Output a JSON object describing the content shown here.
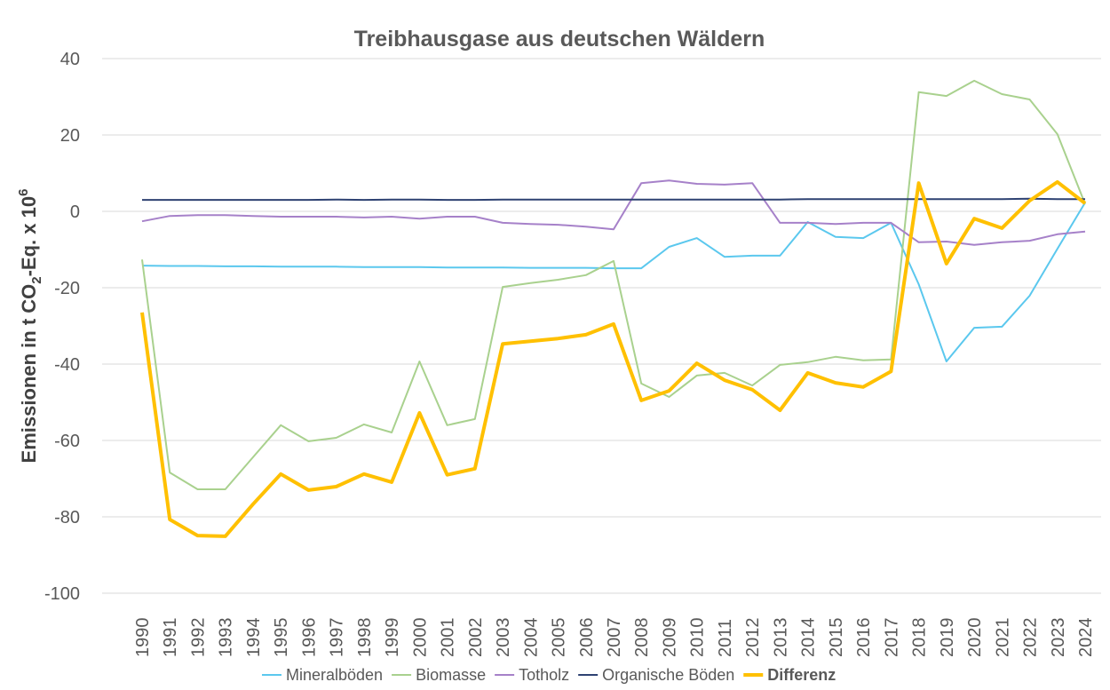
{
  "chart_data": {
    "type": "line",
    "title": "Treibhausgase aus deutschen Wäldern",
    "ylabel_main": "Emissionen in t CO",
    "ylabel_sub": "2",
    "ylabel_mid": "-Eq. x 10",
    "ylabel_sup": "6",
    "ylim": [
      -100,
      40
    ],
    "yticks": [
      40,
      20,
      0,
      -20,
      -40,
      -60,
      -80,
      -100
    ],
    "grid": true,
    "legend_position": "bottom",
    "x": [
      1990,
      1991,
      1992,
      1993,
      1994,
      1995,
      1996,
      1997,
      1998,
      1999,
      2000,
      2001,
      2002,
      2003,
      2004,
      2005,
      2006,
      2007,
      2008,
      2009,
      2010,
      2011,
      2012,
      2013,
      2014,
      2015,
      2016,
      2017,
      2018,
      2019,
      2020,
      2021,
      2022,
      2023,
      2024
    ],
    "series": [
      {
        "name": "Mineralböden",
        "color": "#5BC8EE",
        "bold": false,
        "values": [
          -14.2,
          -14.3,
          -14.3,
          -14.4,
          -14.4,
          -14.5,
          -14.5,
          -14.5,
          -14.6,
          -14.6,
          -14.6,
          -14.7,
          -14.7,
          -14.7,
          -14.8,
          -14.8,
          -14.8,
          -14.9,
          -14.9,
          -9.3,
          -7.0,
          -11.9,
          -11.6,
          -11.6,
          -2.8,
          -6.7,
          -7.0,
          -3.0,
          -19.1,
          -39.3,
          -30.5,
          -30.2,
          -22.1,
          -9.8,
          2.3
        ]
      },
      {
        "name": "Biomasse",
        "color": "#A9D18E",
        "bold": false,
        "values": [
          -12.6,
          -68.4,
          -72.8,
          -72.8,
          -64.4,
          -56.0,
          -60.2,
          -59.3,
          -55.8,
          -57.9,
          -39.3,
          -56.0,
          -54.4,
          -19.8,
          -18.8,
          -17.9,
          -16.7,
          -13.0,
          -45.1,
          -48.6,
          -43.0,
          -42.3,
          -45.6,
          -40.2,
          -39.5,
          -38.1,
          -39.0,
          -38.8,
          31.2,
          30.2,
          34.2,
          30.7,
          29.3,
          20.2,
          1.9
        ]
      },
      {
        "name": "Totholz",
        "color": "#A681C9",
        "bold": false,
        "values": [
          -2.6,
          -1.2,
          -1.0,
          -1.0,
          -1.2,
          -1.4,
          -1.4,
          -1.4,
          -1.6,
          -1.4,
          -1.9,
          -1.4,
          -1.4,
          -3.0,
          -3.3,
          -3.5,
          -4.0,
          -4.7,
          7.4,
          8.1,
          7.2,
          7.0,
          7.4,
          -3.0,
          -3.0,
          -3.3,
          -3.0,
          -3.0,
          -8.1,
          -7.9,
          -8.8,
          -8.1,
          -7.7,
          -6.0,
          -5.3
        ]
      },
      {
        "name": "Organische Böden",
        "color": "#2E4272",
        "bold": false,
        "values": [
          3.0,
          3.0,
          3.0,
          3.0,
          3.0,
          3.0,
          3.0,
          3.1,
          3.0,
          3.1,
          3.1,
          3.0,
          3.0,
          3.1,
          3.1,
          3.1,
          3.1,
          3.1,
          3.1,
          3.1,
          3.1,
          3.1,
          3.1,
          3.1,
          3.2,
          3.2,
          3.2,
          3.2,
          3.2,
          3.2,
          3.2,
          3.2,
          3.3,
          3.2,
          3.2
        ]
      },
      {
        "name": "Differenz",
        "color": "#FFC000",
        "bold": true,
        "values": [
          -26.5,
          -80.7,
          -84.9,
          -85.1,
          -76.7,
          -68.8,
          -73.0,
          -72.1,
          -68.8,
          -70.9,
          -52.8,
          -69.0,
          -67.4,
          -34.7,
          -34.0,
          -33.3,
          -32.3,
          -29.5,
          -49.5,
          -47.0,
          -39.8,
          -44.2,
          -46.7,
          -52.1,
          -42.3,
          -44.9,
          -46.0,
          -41.9,
          7.4,
          -13.7,
          -1.9,
          -4.4,
          2.8,
          7.7,
          2.1
        ]
      }
    ]
  }
}
